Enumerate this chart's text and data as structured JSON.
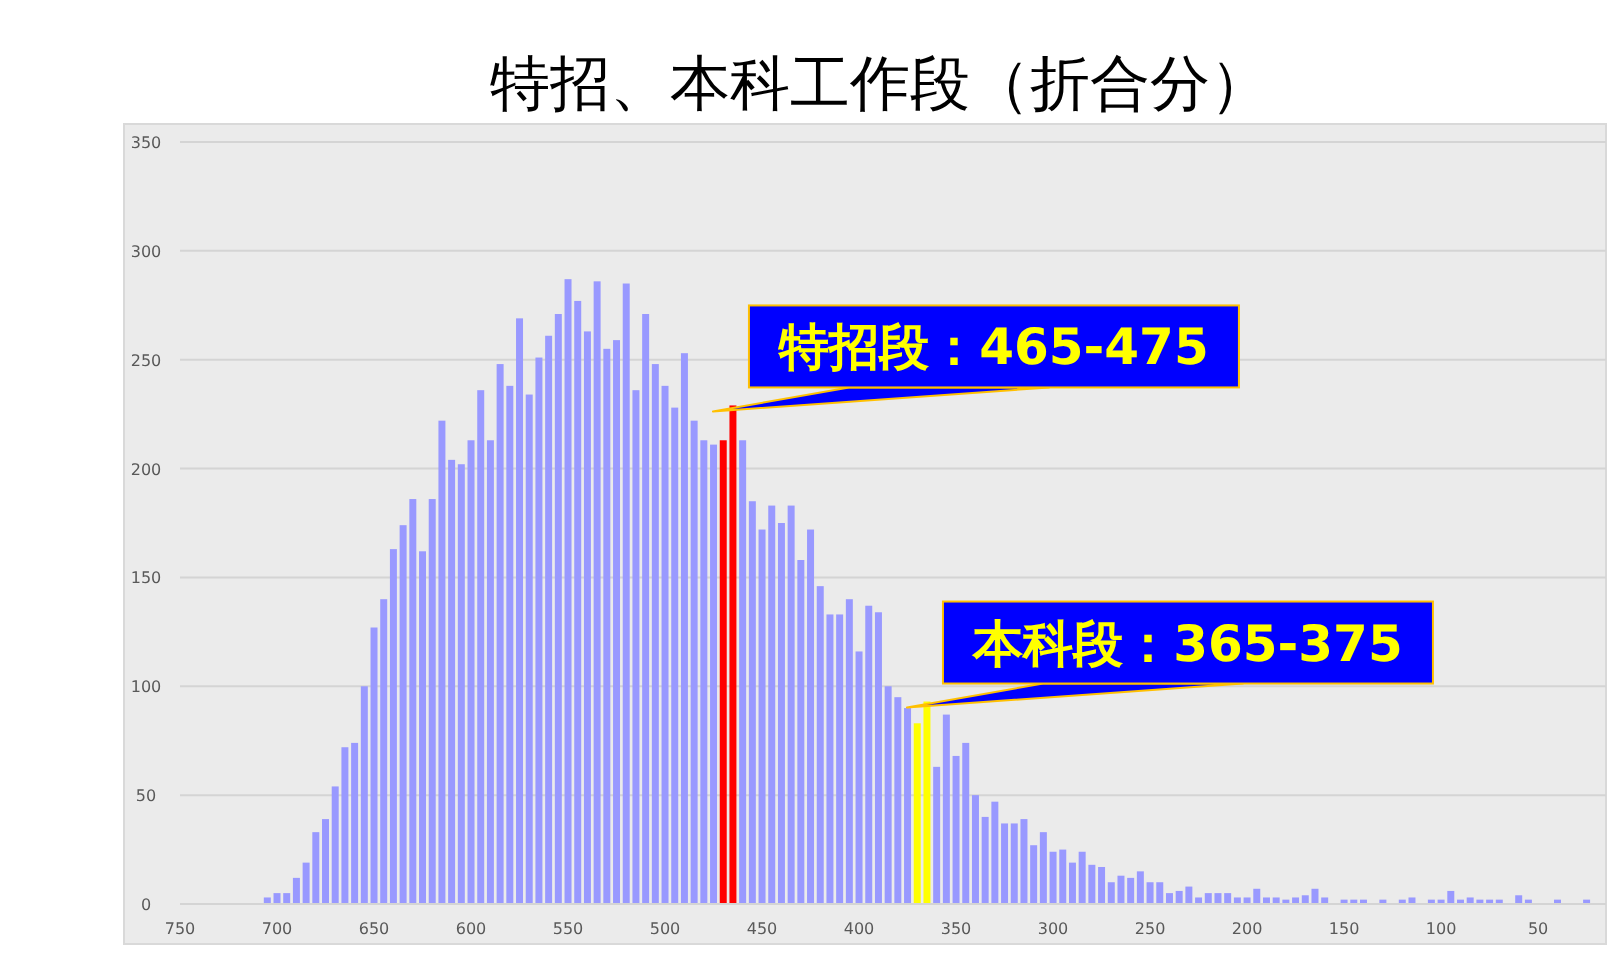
{
  "chart_data": {
    "type": "bar",
    "title": "特招、本科工作段（折合分）",
    "x": [
      705,
      700,
      695,
      690,
      685,
      680,
      675,
      670,
      665,
      660,
      655,
      650,
      645,
      640,
      635,
      630,
      625,
      620,
      615,
      610,
      605,
      600,
      595,
      590,
      585,
      580,
      575,
      570,
      565,
      560,
      555,
      550,
      545,
      540,
      535,
      530,
      525,
      520,
      515,
      510,
      505,
      500,
      495,
      490,
      485,
      480,
      475,
      470,
      465,
      460,
      455,
      450,
      445,
      440,
      435,
      430,
      425,
      420,
      415,
      410,
      405,
      400,
      395,
      390,
      385,
      380,
      375,
      370,
      365,
      360,
      355,
      350,
      345,
      340,
      335,
      330,
      325,
      320,
      315,
      310,
      305,
      300,
      295,
      290,
      285,
      280,
      275,
      270,
      265,
      260,
      255,
      250,
      245,
      240,
      235,
      230,
      225,
      220,
      215,
      210,
      205,
      200,
      195,
      190,
      185,
      180,
      175,
      170,
      165,
      160,
      150,
      145,
      140,
      130,
      120,
      115,
      105,
      100,
      95,
      90,
      85,
      80,
      75,
      70,
      60,
      55,
      40,
      25
    ],
    "values": [
      3,
      5,
      5,
      12,
      19,
      33,
      39,
      54,
      72,
      74,
      100,
      127,
      140,
      163,
      174,
      186,
      162,
      186,
      222,
      204,
      202,
      213,
      236,
      213,
      248,
      238,
      269,
      234,
      251,
      261,
      271,
      287,
      277,
      263,
      286,
      255,
      259,
      285,
      236,
      271,
      248,
      238,
      228,
      253,
      222,
      213,
      211,
      213,
      229,
      213,
      185,
      172,
      183,
      175,
      183,
      158,
      172,
      146,
      133,
      133,
      140,
      116,
      137,
      134,
      100,
      95,
      90,
      83,
      93,
      63,
      87,
      68,
      74,
      50,
      40,
      47,
      37,
      37,
      39,
      27,
      33,
      24,
      25,
      19,
      24,
      18,
      17,
      10,
      13,
      12,
      15,
      10,
      10,
      5,
      6,
      8,
      3,
      5,
      5,
      5,
      3,
      3,
      7,
      3,
      3,
      2,
      3,
      4,
      7,
      3,
      2,
      2,
      2,
      2,
      2,
      3,
      2,
      2,
      6,
      2,
      3,
      2,
      2,
      2,
      4,
      2,
      2,
      2
    ],
    "colors": [
      "#9999ff",
      "#9999ff",
      "#9999ff",
      "#9999ff",
      "#9999ff",
      "#9999ff",
      "#9999ff",
      "#9999ff",
      "#9999ff",
      "#9999ff",
      "#9999ff",
      "#9999ff",
      "#9999ff",
      "#9999ff",
      "#9999ff",
      "#9999ff",
      "#9999ff",
      "#9999ff",
      "#9999ff",
      "#9999ff",
      "#9999ff",
      "#9999ff",
      "#9999ff",
      "#9999ff",
      "#9999ff",
      "#9999ff",
      "#9999ff",
      "#9999ff",
      "#9999ff",
      "#9999ff",
      "#9999ff",
      "#9999ff",
      "#9999ff",
      "#9999ff",
      "#9999ff",
      "#9999ff",
      "#9999ff",
      "#9999ff",
      "#9999ff",
      "#9999ff",
      "#9999ff",
      "#9999ff",
      "#9999ff",
      "#9999ff",
      "#9999ff",
      "#9999ff",
      "#9999ff",
      "#ff0000",
      "#ff0000",
      "#9999ff",
      "#9999ff",
      "#9999ff",
      "#9999ff",
      "#9999ff",
      "#9999ff",
      "#9999ff",
      "#9999ff",
      "#9999ff",
      "#9999ff",
      "#9999ff",
      "#9999ff",
      "#9999ff",
      "#9999ff",
      "#9999ff",
      "#9999ff",
      "#9999ff",
      "#9999ff",
      "#ffff00",
      "#ffff00",
      "#9999ff",
      "#9999ff",
      "#9999ff",
      "#9999ff",
      "#9999ff",
      "#9999ff",
      "#9999ff",
      "#9999ff",
      "#9999ff",
      "#9999ff",
      "#9999ff",
      "#9999ff",
      "#9999ff",
      "#9999ff",
      "#9999ff",
      "#9999ff",
      "#9999ff",
      "#9999ff",
      "#9999ff",
      "#9999ff",
      "#9999ff",
      "#9999ff",
      "#9999ff",
      "#9999ff",
      "#9999ff",
      "#9999ff",
      "#9999ff",
      "#9999ff",
      "#9999ff",
      "#9999ff",
      "#9999ff",
      "#9999ff",
      "#9999ff",
      "#9999ff",
      "#9999ff",
      "#9999ff",
      "#9999ff",
      "#9999ff",
      "#9999ff",
      "#9999ff",
      "#9999ff",
      "#9999ff",
      "#9999ff",
      "#9999ff",
      "#9999ff",
      "#9999ff",
      "#9999ff",
      "#9999ff",
      "#9999ff",
      "#9999ff",
      "#9999ff",
      "#9999ff",
      "#9999ff",
      "#9999ff",
      "#9999ff",
      "#9999ff",
      "#9999ff",
      "#9999ff",
      "#9999ff"
    ],
    "xlim": [
      750,
      15
    ],
    "xticks": [
      750,
      700,
      650,
      600,
      550,
      500,
      450,
      400,
      350,
      300,
      250,
      200,
      150,
      100,
      50
    ],
    "ylim": [
      0,
      350
    ],
    "yticks": [
      0,
      50,
      100,
      150,
      200,
      250,
      300,
      350
    ],
    "grid": "y",
    "annotations": [
      {
        "text": "特招段：465-475",
        "x": 465,
        "y": 229
      },
      {
        "text": "本科段：365-375",
        "x": 365,
        "y": 93
      }
    ]
  }
}
